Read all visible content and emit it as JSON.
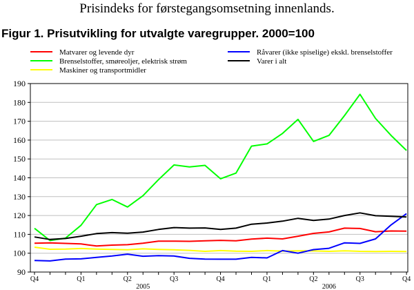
{
  "header": {
    "subtitle": "Prisindeks for førstegangsomsetning innenlands.",
    "figure_title": "Figur 1. Prisutvikling for utvalgte varegrupper. 2000=100"
  },
  "chart_data": {
    "type": "line",
    "title": "Figur 1. Prisutvikling for utvalgte varegrupper. 2000=100",
    "xlabel": "",
    "ylabel": "",
    "ylim": [
      90,
      190
    ],
    "yticks": [
      90,
      100,
      110,
      120,
      130,
      140,
      150,
      160,
      170,
      180,
      190
    ],
    "grid": true,
    "legend_position": "top",
    "x": [
      "2004-12",
      "2005-01",
      "2005-02",
      "2005-03",
      "2005-04",
      "2005-05",
      "2005-06",
      "2005-07",
      "2005-08",
      "2005-09",
      "2005-10",
      "2005-11",
      "2005-12",
      "2006-01",
      "2006-02",
      "2006-03",
      "2006-04",
      "2006-05",
      "2006-06",
      "2006-07",
      "2006-08",
      "2006-09",
      "2006-10",
      "2006-11",
      "2006-12"
    ],
    "quarter_labels": [
      {
        "at": "2004-12",
        "label": "Q4"
      },
      {
        "at": "2005-03",
        "label": "Q1"
      },
      {
        "at": "2005-06",
        "label": "Q2"
      },
      {
        "at": "2005-09",
        "label": "Q3"
      },
      {
        "at": "2005-12",
        "label": "Q4"
      },
      {
        "at": "2006-03",
        "label": "Q1"
      },
      {
        "at": "2006-06",
        "label": "Q2"
      },
      {
        "at": "2006-09",
        "label": "Q3"
      },
      {
        "at": "2006-12",
        "label": "Q4"
      }
    ],
    "year_labels": [
      {
        "at": "2005-07",
        "label": "2005"
      },
      {
        "at": "2006-07",
        "label": "2006"
      }
    ],
    "series": [
      {
        "name": "Matvarer og levende dyr",
        "color": "#ff0000",
        "values": [
          105.3,
          105.5,
          105.2,
          104.9,
          103.8,
          104.3,
          104.5,
          105.3,
          106.4,
          106.4,
          106.3,
          106.6,
          106.8,
          106.6,
          107.5,
          108.0,
          107.6,
          109.0,
          110.5,
          111.3,
          113.3,
          113.1,
          111.4,
          111.8,
          111.7
        ]
      },
      {
        "name": "Brenselstoffer, smøreoljer, elektrisk strøm",
        "color": "#00ff00",
        "values": [
          113.2,
          106.7,
          108.0,
          114.8,
          125.8,
          128.5,
          124.5,
          130.5,
          139.0,
          146.8,
          145.8,
          146.6,
          139.5,
          142.5,
          156.8,
          158.0,
          163.5,
          171.0,
          159.3,
          162.5,
          173.0,
          184.3,
          171.5,
          162.5,
          154.5
        ]
      },
      {
        "name": "Maskiner og transportmidler",
        "color": "#ffff00",
        "values": [
          103.2,
          102.1,
          102.2,
          102.5,
          102.2,
          102.0,
          101.8,
          102.3,
          102.0,
          101.8,
          101.5,
          101.0,
          101.4,
          101.1,
          101.0,
          101.4,
          101.1,
          101.3,
          101.2,
          101.0,
          101.3,
          101.0,
          100.9,
          101.0,
          100.9
        ]
      },
      {
        "name": "Råvarer (ikke spiselige) ekskl. brenselstoffer",
        "color": "#0000ff",
        "values": [
          96.1,
          95.9,
          96.9,
          97.0,
          97.8,
          98.5,
          99.5,
          98.4,
          98.7,
          98.5,
          97.3,
          96.9,
          96.8,
          96.8,
          97.8,
          97.5,
          101.4,
          100.0,
          101.9,
          102.6,
          105.5,
          105.2,
          107.6,
          115.0,
          121.0
        ]
      },
      {
        "name": "Varer i alt",
        "color": "#000000",
        "values": [
          108.6,
          107.3,
          107.8,
          109.0,
          110.4,
          110.9,
          110.6,
          111.2,
          112.6,
          113.6,
          113.3,
          113.4,
          112.6,
          113.3,
          115.4,
          116.0,
          117.0,
          118.5,
          117.4,
          118.1,
          120.0,
          121.4,
          119.9,
          119.6,
          119.2
        ]
      }
    ],
    "legend_layout": [
      [
        "Matvarer og levende dyr",
        "Råvarer (ikke spiselige) ekskl. brenselstoffer"
      ],
      [
        "Brenselstoffer, smøreoljer, elektrisk strøm",
        "Varer i alt"
      ],
      [
        "Maskiner og transportmidler"
      ]
    ]
  }
}
